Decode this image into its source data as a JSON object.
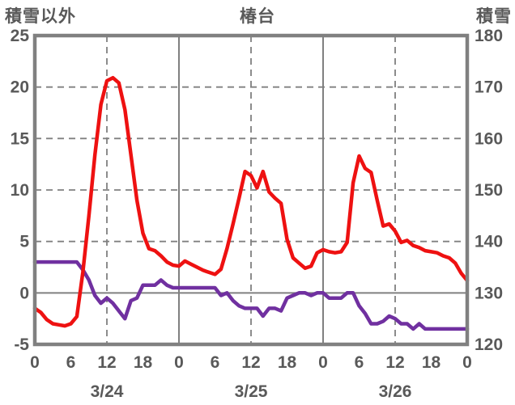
{
  "colors": {
    "background": "#ffffff",
    "border_and_grid": "#808080",
    "text": "#595959",
    "series_red": "#ee1111",
    "series_purple": "#7030a0"
  },
  "chart_data": {
    "type": "line",
    "title": "椿台",
    "left_axis": {
      "title": "積雪以外",
      "min": -5,
      "max": 25,
      "ticks": [
        25,
        20,
        15,
        10,
        5,
        0,
        -5
      ],
      "solid_gridline_at": 0,
      "dashed_gridlines_at": [
        20,
        15,
        10,
        5
      ]
    },
    "right_axis": {
      "title": "積雪",
      "min": 120,
      "max": 180,
      "ticks": [
        180,
        170,
        160,
        150,
        140,
        130,
        120
      ]
    },
    "x_axis": {
      "hours_total": 72,
      "tick_hours": [
        0,
        6,
        12,
        18,
        24,
        30,
        36,
        42,
        48,
        54,
        60,
        66,
        72
      ],
      "tick_labels": [
        "0",
        "6",
        "12",
        "18",
        "0",
        "6",
        "12",
        "18",
        "0",
        "6",
        "12",
        "18",
        "0"
      ],
      "date_labels": [
        {
          "label": "3/24",
          "center_hour": 12
        },
        {
          "label": "3/25",
          "center_hour": 36
        },
        {
          "label": "3/26",
          "center_hour": 60
        }
      ],
      "solid_gridlines_at_hours": [
        24,
        48
      ],
      "dashed_gridlines_at_hours": [
        12,
        36,
        60
      ]
    },
    "grid": true,
    "legend": "none",
    "series": [
      {
        "name": "red-series",
        "axis": "left",
        "color": "#ee1111",
        "hourly_values": [
          -1.5,
          -1.9,
          -2.6,
          -3.0,
          -3.1,
          -3.2,
          -3.0,
          -2.3,
          2.0,
          7.5,
          13.4,
          18.3,
          20.6,
          20.9,
          20.4,
          17.8,
          13.4,
          9.0,
          5.8,
          4.3,
          4.1,
          3.6,
          3.0,
          2.7,
          2.6,
          3.1,
          2.8,
          2.5,
          2.2,
          2.0,
          1.8,
          2.3,
          4.3,
          6.7,
          9.2,
          11.8,
          11.4,
          10.2,
          11.8,
          9.8,
          9.2,
          8.7,
          5.2,
          3.4,
          2.9,
          2.4,
          2.6,
          3.9,
          4.2,
          4.0,
          3.9,
          4.0,
          4.9,
          10.7,
          13.3,
          12.1,
          11.7,
          9.0,
          6.5,
          6.7,
          6.0,
          4.9,
          5.1,
          4.6,
          4.4,
          4.1,
          4.0,
          3.9,
          3.6,
          3.4,
          2.9,
          1.9,
          1.2
        ]
      },
      {
        "name": "purple-series",
        "axis": "right",
        "color": "#7030a0",
        "hourly_values": [
          136,
          136,
          136,
          136,
          136,
          136,
          136,
          136,
          134.5,
          132.5,
          129.5,
          128,
          129,
          128,
          126.5,
          125,
          128.5,
          129,
          131.5,
          131.5,
          131.5,
          132.5,
          131.5,
          131,
          131,
          131,
          131,
          131,
          131,
          131,
          131,
          129.5,
          130,
          128.5,
          127.5,
          127,
          127,
          127,
          125.5,
          127,
          127,
          126.5,
          129,
          129.5,
          130,
          130,
          129.5,
          130,
          130,
          129,
          129,
          129,
          130,
          130,
          127.5,
          126,
          124,
          124,
          124.5,
          125.5,
          125,
          124,
          124,
          123,
          124,
          123,
          123,
          123,
          123,
          123,
          123,
          123,
          123
        ]
      }
    ]
  }
}
